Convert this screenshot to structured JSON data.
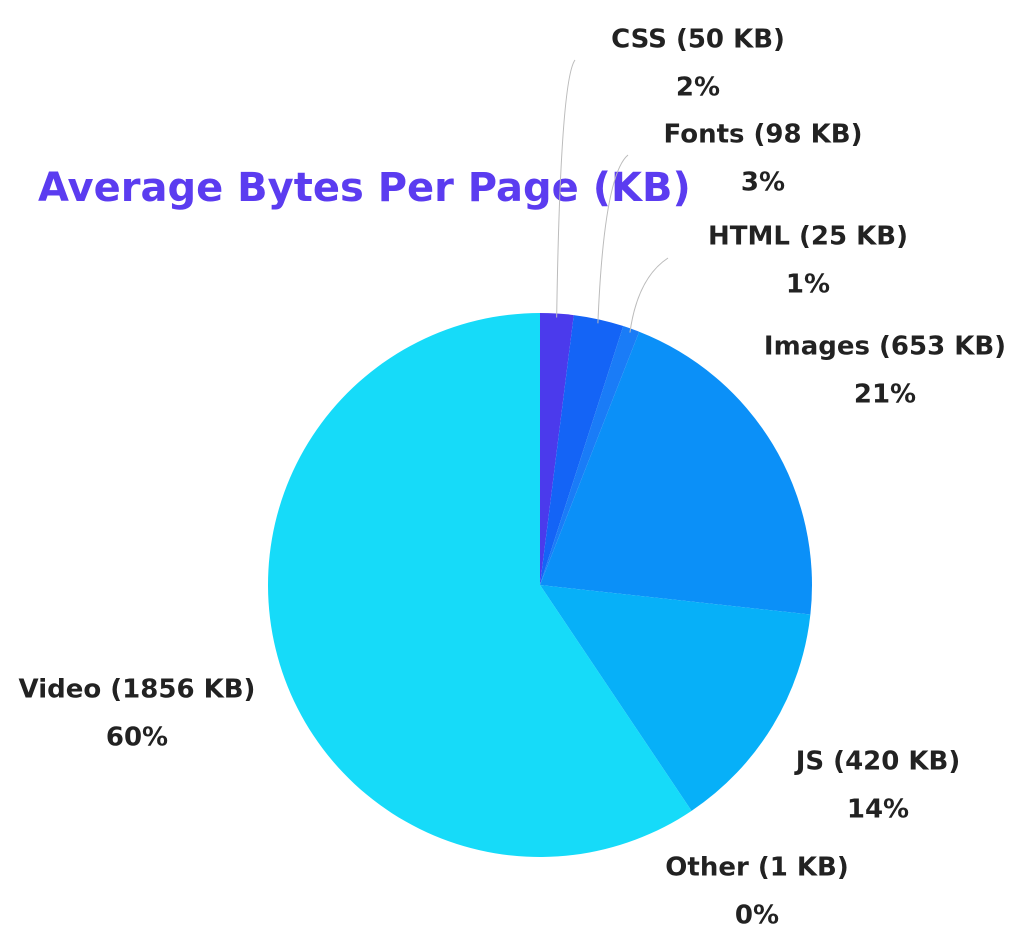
{
  "chart_data": {
    "type": "pie",
    "title": "Average Bytes Per Page (KB)",
    "categories": [
      "CSS (50 KB)",
      "Fonts (98 KB)",
      "HTML (25 KB)",
      "Images (653 KB)",
      "JS (420 KB)",
      "Other (1 KB)",
      "Video (1856 KB)"
    ],
    "values": [
      2,
      3,
      1,
      21,
      14,
      0,
      60
    ],
    "value_labels": [
      "2%",
      "3%",
      "1%",
      "21%",
      "14%",
      "0%",
      "60%"
    ],
    "colors": [
      "#4b3aec",
      "#1464f6",
      "#1a7cf7",
      "#0b90f8",
      "#07b0f8",
      "#07c6f8",
      "#16dbf9"
    ]
  }
}
